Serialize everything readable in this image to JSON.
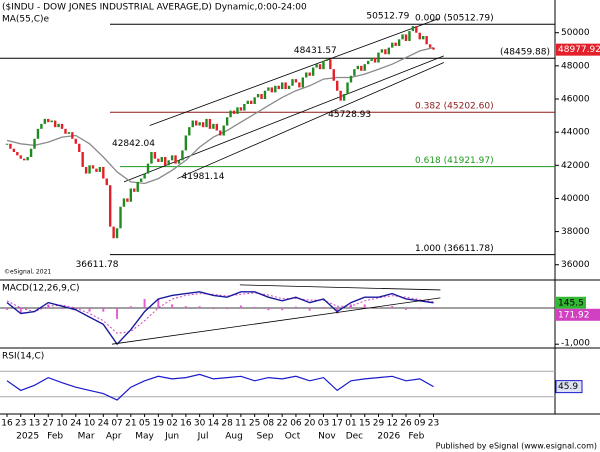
{
  "chart_data": [
    {
      "type": "candlestick",
      "title": "($INDU - DOW JONES INDUSTRIAL AVERAGE,D) Dynamic,0:00-24:00",
      "watermark": "©eSignal, 2021",
      "x": [
        0,
        1,
        2,
        3,
        4,
        5,
        6,
        7,
        8,
        9,
        10,
        11,
        12,
        13,
        14,
        15,
        16,
        17,
        18,
        19,
        20,
        21,
        22,
        23,
        24,
        25,
        26,
        27,
        28,
        29,
        30,
        31,
        32,
        33,
        34,
        35,
        36,
        37,
        38,
        39,
        40,
        41,
        42,
        43,
        44,
        45,
        46,
        47,
        48,
        49,
        50,
        51,
        52,
        53,
        54,
        55,
        56,
        57,
        58,
        59,
        60,
        61,
        62,
        63,
        64,
        65,
        66,
        67,
        68,
        69,
        70,
        71,
        72,
        73,
        74,
        75,
        76,
        77,
        78,
        79,
        80,
        81,
        82,
        83,
        84,
        85,
        86,
        87,
        88,
        89,
        90,
        91,
        92,
        93,
        94,
        95,
        96,
        97,
        98,
        99,
        100,
        101,
        102,
        103,
        104,
        105,
        106,
        107,
        108,
        109,
        110,
        111,
        112,
        113,
        114,
        115,
        116,
        117,
        118,
        119,
        120,
        121,
        122,
        123,
        124
      ],
      "close": [
        43300,
        43000,
        42800,
        42600,
        42400,
        42300,
        42500,
        43000,
        43600,
        44200,
        44500,
        44800,
        44600,
        44700,
        44300,
        44500,
        44200,
        43900,
        44000,
        43600,
        43300,
        42800,
        41900,
        41500,
        42000,
        41800,
        41600,
        41900,
        41200,
        40800,
        38300,
        37600,
        38200,
        39500,
        40000,
        39800,
        40600,
        40400,
        41000,
        41200,
        41500,
        42100,
        42800,
        42400,
        42200,
        42500,
        42000,
        42300,
        42600,
        42100,
        42300,
        42900,
        43800,
        44300,
        44700,
        44400,
        44600,
        44300,
        44800,
        44200,
        44500,
        44100,
        43800,
        44400,
        44900,
        45300,
        45100,
        45500,
        45300,
        45700,
        45900,
        45700,
        46100,
        46300,
        46000,
        46500,
        46700,
        46400,
        46800,
        46600,
        47000,
        46600,
        46800,
        47200,
        47000,
        46700,
        47300,
        47600,
        47400,
        47900,
        48100,
        47800,
        48300,
        48400,
        47800,
        47100,
        46500,
        45900,
        46300,
        47000,
        47400,
        47800,
        48000,
        47700,
        48100,
        48300,
        48500,
        48200,
        48800,
        49000,
        48700,
        49100,
        49400,
        49200,
        49600,
        49900,
        49500,
        50100,
        50400,
        50000,
        49600,
        49800,
        49300,
        49100,
        48977.92
      ],
      "up_color": "#1f8a1f",
      "down_color": "#e3202a",
      "last_color": "#e3202a",
      "ma": {
        "name": "MA(55,C)e",
        "color": "#8a8a8a",
        "x": [
          0,
          4,
          8,
          12,
          16,
          20,
          24,
          28,
          32,
          36,
          40,
          44,
          48,
          52,
          56,
          60,
          64,
          68,
          72,
          76,
          80,
          84,
          88,
          92,
          96,
          100,
          104,
          108,
          112,
          116,
          120,
          124
        ],
        "values": [
          43500,
          43300,
          43200,
          43400,
          43700,
          43800,
          43300,
          42500,
          41600,
          41000,
          40900,
          41200,
          41700,
          42300,
          43100,
          43700,
          44100,
          44600,
          45100,
          45600,
          46100,
          46500,
          46800,
          47200,
          47300,
          47300,
          47500,
          47800,
          48100,
          48500,
          48900,
          49100
        ]
      },
      "trendlines": [
        {
          "x": [
            41.5,
            125.5
          ],
          "y": [
            44400,
            50850
          ]
        },
        {
          "x": [
            34,
            127
          ],
          "y": [
            41000,
            48600
          ]
        },
        {
          "x": [
            49.5,
            127
          ],
          "y": [
            41200,
            48200
          ]
        }
      ],
      "levels": [
        {
          "value": 50512.79,
          "label": "0.000 (50512.79)",
          "color": "#000000"
        },
        {
          "value": 48459.88,
          "label": "(48459.88)",
          "color": "#000000"
        },
        {
          "value": 45202.6,
          "label": "0.382 (45202.60)",
          "color": "#8b1a1a"
        },
        {
          "value": 41921.97,
          "label": "0.618 (41921.97)",
          "color": "#1e9a1e"
        },
        {
          "value": 36611.78,
          "label": "1.000 (36611.78)",
          "color": "#000000"
        }
      ],
      "annotations": [
        {
          "x": 118,
          "y": 50512.79
        },
        {
          "x": 94,
          "y": 48431.57
        },
        {
          "x": 42,
          "y": 42842.04
        },
        {
          "x": 50,
          "y": 41981.14
        },
        {
          "x": 97,
          "y": 45728.93
        },
        {
          "x": 32,
          "y": 36611.78
        }
      ],
      "xlim": [
        0,
        126
      ],
      "ylim": [
        35200,
        51250
      ],
      "yticks": [
        36000,
        38000,
        40000,
        42000,
        44000,
        46000,
        48000,
        50000
      ]
    },
    {
      "type": "macd",
      "title": "MACD(12,26,9,C)",
      "x": [
        0,
        4,
        8,
        12,
        16,
        20,
        24,
        28,
        32,
        36,
        40,
        44,
        48,
        52,
        56,
        60,
        64,
        68,
        72,
        76,
        80,
        84,
        88,
        92,
        96,
        100,
        104,
        108,
        112,
        116,
        120,
        124
      ],
      "macd": {
        "color": "#1a1a9e",
        "box_color": "#33b833",
        "values": [
          150,
          -150,
          -100,
          150,
          50,
          -50,
          -250,
          -450,
          -1000,
          -600,
          -100,
          250,
          350,
          400,
          450,
          350,
          300,
          450,
          450,
          300,
          200,
          300,
          150,
          250,
          -100,
          150,
          300,
          300,
          400,
          250,
          200,
          145.5
        ]
      },
      "signal": {
        "color": "#d040c0",
        "values": [
          200,
          0,
          -100,
          50,
          80,
          0,
          -150,
          -350,
          -700,
          -650,
          -350,
          0,
          250,
          350,
          400,
          380,
          330,
          380,
          420,
          360,
          260,
          260,
          220,
          220,
          50,
          50,
          200,
          280,
          340,
          300,
          230,
          171.92
        ]
      },
      "histogram": {
        "color": "#e060d0",
        "values": [
          -50,
          -150,
          0,
          100,
          -30,
          -50,
          -100,
          -100,
          -300,
          50,
          250,
          250,
          100,
          50,
          50,
          -30,
          -30,
          70,
          30,
          -60,
          -60,
          40,
          -70,
          30,
          -150,
          100,
          100,
          20,
          60,
          -50,
          -30,
          -26.42
        ]
      },
      "trendlines": [
        {
          "x": [
            67.7,
            126
          ],
          "y": [
            640,
            500
          ]
        },
        {
          "x": [
            30.5,
            126
          ],
          "y": [
            -1000,
            280
          ]
        }
      ],
      "xlim": [
        0,
        126
      ],
      "ylim": [
        -1050,
        720
      ],
      "yticks": [
        {
          "value": -1000,
          "label": "-1,000"
        }
      ]
    },
    {
      "type": "line",
      "title": "RSI(14,C)",
      "x": [
        0,
        4,
        8,
        12,
        16,
        20,
        24,
        28,
        32,
        36,
        40,
        44,
        48,
        52,
        56,
        60,
        64,
        68,
        72,
        76,
        80,
        84,
        88,
        92,
        96,
        100,
        104,
        108,
        112,
        116,
        120,
        124
      ],
      "values": [
        55,
        40,
        48,
        60,
        52,
        45,
        40,
        35,
        25,
        45,
        55,
        62,
        58,
        60,
        65,
        58,
        60,
        62,
        55,
        60,
        58,
        62,
        55,
        60,
        40,
        55,
        58,
        60,
        62,
        55,
        58,
        45.9
      ],
      "color": "#1a1acc",
      "levels": [
        70,
        30
      ],
      "xlim": [
        0,
        126
      ],
      "ylim": [
        0,
        100
      ],
      "xticks": [
        {
          "value": 0,
          "label": "16"
        },
        {
          "value": 4,
          "label": "23"
        },
        {
          "value": 8,
          "label": "13"
        },
        {
          "value": 12,
          "label": "27"
        },
        {
          "value": 16,
          "label": "10"
        },
        {
          "value": 20,
          "label": "24"
        },
        {
          "value": 24,
          "label": "10"
        },
        {
          "value": 28,
          "label": "24"
        },
        {
          "value": 32,
          "label": "07"
        },
        {
          "value": 36,
          "label": "21"
        },
        {
          "value": 40,
          "label": "05"
        },
        {
          "value": 44,
          "label": "19"
        },
        {
          "value": 48,
          "label": "02"
        },
        {
          "value": 52,
          "label": "16"
        },
        {
          "value": 56,
          "label": "30"
        },
        {
          "value": 60,
          "label": "14"
        },
        {
          "value": 64,
          "label": "28"
        },
        {
          "value": 68,
          "label": "11"
        },
        {
          "value": 72,
          "label": "25"
        },
        {
          "value": 76,
          "label": "08"
        },
        {
          "value": 80,
          "label": "22"
        },
        {
          "value": 84,
          "label": "06"
        },
        {
          "value": 88,
          "label": "20"
        },
        {
          "value": 92,
          "label": "03"
        },
        {
          "value": 96,
          "label": "17"
        },
        {
          "value": 100,
          "label": "01"
        },
        {
          "value": 104,
          "label": "15"
        },
        {
          "value": 108,
          "label": "29"
        },
        {
          "value": 112,
          "label": "12"
        },
        {
          "value": 116,
          "label": "26"
        },
        {
          "value": 120,
          "label": "09"
        },
        {
          "value": 124,
          "label": "23"
        }
      ],
      "xticks_major": [
        {
          "value": 6,
          "label": "2025"
        },
        {
          "value": 14,
          "label": "Feb"
        },
        {
          "value": 23,
          "label": "Mar"
        },
        {
          "value": 31,
          "label": "Apr"
        },
        {
          "value": 40,
          "label": "May"
        },
        {
          "value": 48,
          "label": "Jun"
        },
        {
          "value": 57,
          "label": "Jul"
        },
        {
          "value": 66,
          "label": "Aug"
        },
        {
          "value": 75,
          "label": "Sep"
        },
        {
          "value": 83,
          "label": "Oct"
        },
        {
          "value": 93,
          "label": "Nov"
        },
        {
          "value": 101,
          "label": "Dec"
        },
        {
          "value": 111,
          "label": "2026"
        },
        {
          "value": 119,
          "label": "Feb"
        }
      ]
    }
  ],
  "footer": "Published by eSignal (www.esignal.com)"
}
